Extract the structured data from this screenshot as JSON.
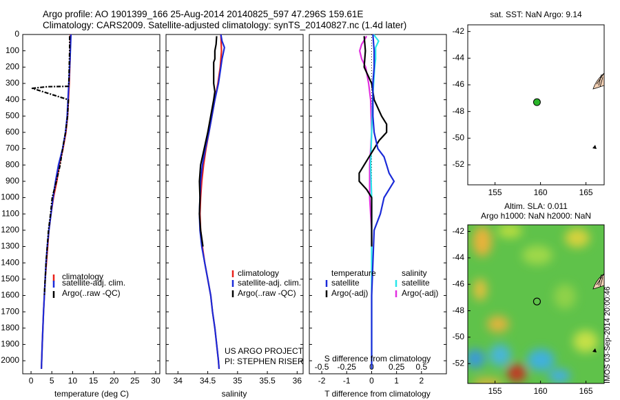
{
  "titles": {
    "line1": "Argo profile: AO 1901399_166 25-Aug-2014 20140825_597 47.296S 159.61E",
    "line2": "Climatology: CARS2009. Satellite-adjusted climatology: synTS_20140827.nc (1.4d later)"
  },
  "colors": {
    "climatology": "#e8201a",
    "satellite": "#1a2ad8",
    "argo": "#000000",
    "sat_salinity": "#28e6ea",
    "argo_salinity": "#e22ee0",
    "float": "#2ab52a"
  },
  "annotations": {
    "project_line1": "US ARGO PROJECT",
    "project_line2": "PI: STEPHEN RISER",
    "timestamp": "IMOS 03-Sep-2014 20:00:46"
  },
  "chart_data": [
    {
      "type": "line",
      "panel": "temperature",
      "xlabel": "temperature (deg C)",
      "xlim": [
        -2,
        31
      ],
      "ylim": [
        2080,
        0
      ],
      "xticks": [
        0,
        5,
        10,
        15,
        20,
        25,
        30
      ],
      "yticks": [
        0,
        100,
        200,
        300,
        400,
        500,
        600,
        700,
        800,
        900,
        1000,
        1100,
        1200,
        1300,
        1400,
        1500,
        1600,
        1700,
        1800,
        1900,
        2000
      ],
      "legend": [
        "climatology",
        "satellite-adj. clim.",
        "Argo(..raw -QC)"
      ],
      "series": [
        {
          "name": "climatology",
          "depth": [
            0,
            150,
            300,
            400,
            500,
            600,
            700,
            800,
            900,
            1000,
            1100,
            1200,
            1300,
            1400,
            1500,
            1700,
            1900,
            2050
          ],
          "values": [
            9.5,
            9.4,
            9.2,
            9.0,
            8.8,
            8.4,
            7.7,
            6.8,
            6.2,
            5.4,
            4.8,
            4.3,
            4.0,
            3.7,
            3.4,
            3.0,
            2.7,
            2.5
          ]
        },
        {
          "name": "satellite-adj. clim.",
          "depth": [
            0,
            150,
            300,
            400,
            500,
            600,
            700,
            800,
            900,
            1000,
            1100,
            1200,
            1300,
            1400,
            1500,
            1700,
            1900,
            2050
          ],
          "values": [
            9.6,
            9.4,
            9.1,
            8.9,
            8.7,
            8.3,
            7.6,
            6.6,
            5.9,
            5.3,
            4.8,
            4.3,
            3.9,
            3.6,
            3.4,
            3.0,
            2.7,
            2.5
          ]
        },
        {
          "name": "Argo(..raw -QC)",
          "depth": [
            10,
            100,
            200,
            300,
            318,
            320,
            325,
            330,
            400,
            500,
            600,
            700,
            800,
            900,
            1000,
            1100,
            1200,
            1300,
            1400,
            1500,
            1600
          ],
          "values": [
            9.3,
            9.3,
            9.2,
            9.1,
            9.0,
            4.0,
            2.0,
            0.3,
            9.0,
            8.8,
            8.3,
            7.6,
            7.0,
            6.1,
            5.1,
            4.7,
            4.2,
            3.9,
            3.6,
            3.4,
            3.2
          ]
        }
      ]
    },
    {
      "type": "line",
      "panel": "salinity",
      "xlabel": "salinity",
      "xlim": [
        33.8,
        36.1
      ],
      "ylim": [
        2080,
        0
      ],
      "xticks": [
        34,
        34.5,
        35,
        35.5,
        36
      ],
      "legend": [
        "climatology",
        "satellite-adj. clim.",
        "Argo(..raw -QC)"
      ],
      "series": [
        {
          "name": "climatology",
          "depth": [
            0,
            100,
            200,
            300,
            400,
            500,
            600,
            700,
            800,
            900,
            1000,
            1100,
            1200,
            1300,
            1400,
            1500,
            1600,
            1700,
            1800,
            1900,
            2000,
            2050
          ],
          "values": [
            34.72,
            34.73,
            34.71,
            34.67,
            34.62,
            34.57,
            34.52,
            34.47,
            34.43,
            34.4,
            34.38,
            34.37,
            34.38,
            34.41,
            34.45,
            34.5,
            34.55,
            34.58,
            34.62,
            34.65,
            34.68,
            34.69
          ]
        },
        {
          "name": "satellite-adj. clim.",
          "depth": [
            0,
            40,
            80,
            150,
            200,
            300,
            400,
            500,
            600,
            700,
            800,
            900,
            1000,
            1100,
            1200,
            1300,
            1400,
            1500,
            1600,
            1700,
            1800,
            1900,
            2000,
            2050
          ],
          "values": [
            34.72,
            34.74,
            34.78,
            34.74,
            34.72,
            34.68,
            34.62,
            34.57,
            34.52,
            34.46,
            34.41,
            34.38,
            34.37,
            34.36,
            34.37,
            34.4,
            34.45,
            34.5,
            34.55,
            34.58,
            34.62,
            34.65,
            34.68,
            34.69
          ]
        },
        {
          "name": "Argo(..raw -QC)",
          "depth": [
            10,
            60,
            100,
            150,
            170,
            200,
            300,
            350,
            400,
            500,
            600,
            700,
            800,
            900,
            1000,
            1100,
            1200,
            1300
          ],
          "values": [
            34.65,
            34.64,
            34.62,
            34.62,
            34.6,
            34.6,
            34.6,
            34.62,
            34.6,
            34.55,
            34.5,
            34.44,
            34.38,
            34.36,
            34.37,
            34.36,
            34.38,
            34.42
          ]
        }
      ]
    },
    {
      "type": "line",
      "panel": "difference",
      "xlabel": "T difference from climatology",
      "xlabel2": "S difference from climatology",
      "xlim": [
        -2.5,
        3
      ],
      "xlim_salinity": [
        -0.625,
        0.75
      ],
      "ylim": [
        2080,
        0
      ],
      "xticks": [
        "-2",
        "-1",
        "0",
        "1",
        "2"
      ],
      "xticks_salinity": [
        "-0.5",
        "-0.25",
        "0",
        "0.25",
        "0.5"
      ],
      "legend_headers": [
        "temperature",
        "salinity"
      ],
      "legend": [
        "satellite",
        "Argo(-adj)",
        "satellite",
        "Argo(-adj)"
      ],
      "series": [
        {
          "name": "satellite",
          "depth": [
            0,
            100,
            200,
            300,
            400,
            500,
            600,
            700,
            750,
            800,
            850,
            900,
            950,
            1000,
            1100,
            1200,
            1400,
            1600,
            1800,
            2000,
            2050
          ],
          "values": [
            0.05,
            0.1,
            0.1,
            0.05,
            0.05,
            0.05,
            0.1,
            0.25,
            0.5,
            0.6,
            0.7,
            0.9,
            0.7,
            0.5,
            0.35,
            0.1,
            0.05,
            0.0,
            0.0,
            0.0,
            0.0
          ]
        },
        {
          "name": "Argo(-adj)",
          "depth": [
            10,
            100,
            200,
            300,
            400,
            500,
            550,
            600,
            650,
            700,
            800,
            850,
            900,
            950,
            1000,
            1100,
            1200,
            1300
          ],
          "values": [
            -0.3,
            -0.25,
            -0.3,
            0.0,
            0.1,
            0.4,
            0.6,
            0.6,
            0.3,
            0.1,
            -0.3,
            -0.5,
            -0.5,
            -0.2,
            0.0,
            0.0,
            0.0,
            0.0
          ]
        },
        {
          "name": "satellite",
          "depth": [
            0,
            40,
            80,
            150,
            200,
            300,
            400,
            600,
            800,
            1000,
            1200,
            1500,
            1800,
            2050
          ],
          "values": [
            0.02,
            0.07,
            0.04,
            0.04,
            0.03,
            0.02,
            0.01,
            0.0,
            -0.01,
            0.0,
            0.0,
            0.0,
            0.0,
            0.0
          ]
        },
        {
          "name": "Argo(-adj)",
          "depth": [
            10,
            60,
            100,
            150,
            200,
            300,
            400,
            600,
            800,
            1000,
            1100,
            1200,
            1300
          ],
          "values": [
            -0.05,
            -0.1,
            -0.12,
            -0.1,
            -0.06,
            -0.03,
            -0.01,
            0.0,
            -0.02,
            -0.02,
            -0.01,
            0.0,
            0.0
          ]
        }
      ]
    },
    {
      "type": "scatter",
      "panel": "sst-map",
      "title": "sat. SST: NaN Argo: 9.14",
      "xlim": [
        152,
        167
      ],
      "ylim": [
        -53.5,
        -41.5
      ],
      "xticks": [
        155,
        160,
        165
      ],
      "yticks": [
        -42,
        -44,
        -46,
        -48,
        -50,
        -52
      ],
      "float_position": {
        "lon": 159.61,
        "lat": -47.3
      }
    },
    {
      "type": "heatmap",
      "panel": "sla-map",
      "title1": "Altim. SLA: 0.011",
      "title2": "Argo h1000: NaN h2000: NaN",
      "xlim": [
        152,
        167
      ],
      "ylim": [
        -53.5,
        -41.5
      ],
      "xticks": [
        155,
        160,
        165
      ],
      "yticks": [
        -42,
        -44,
        -46,
        -48,
        -50,
        -52
      ],
      "float_position": {
        "lon": 159.61,
        "lat": -47.3
      }
    }
  ]
}
